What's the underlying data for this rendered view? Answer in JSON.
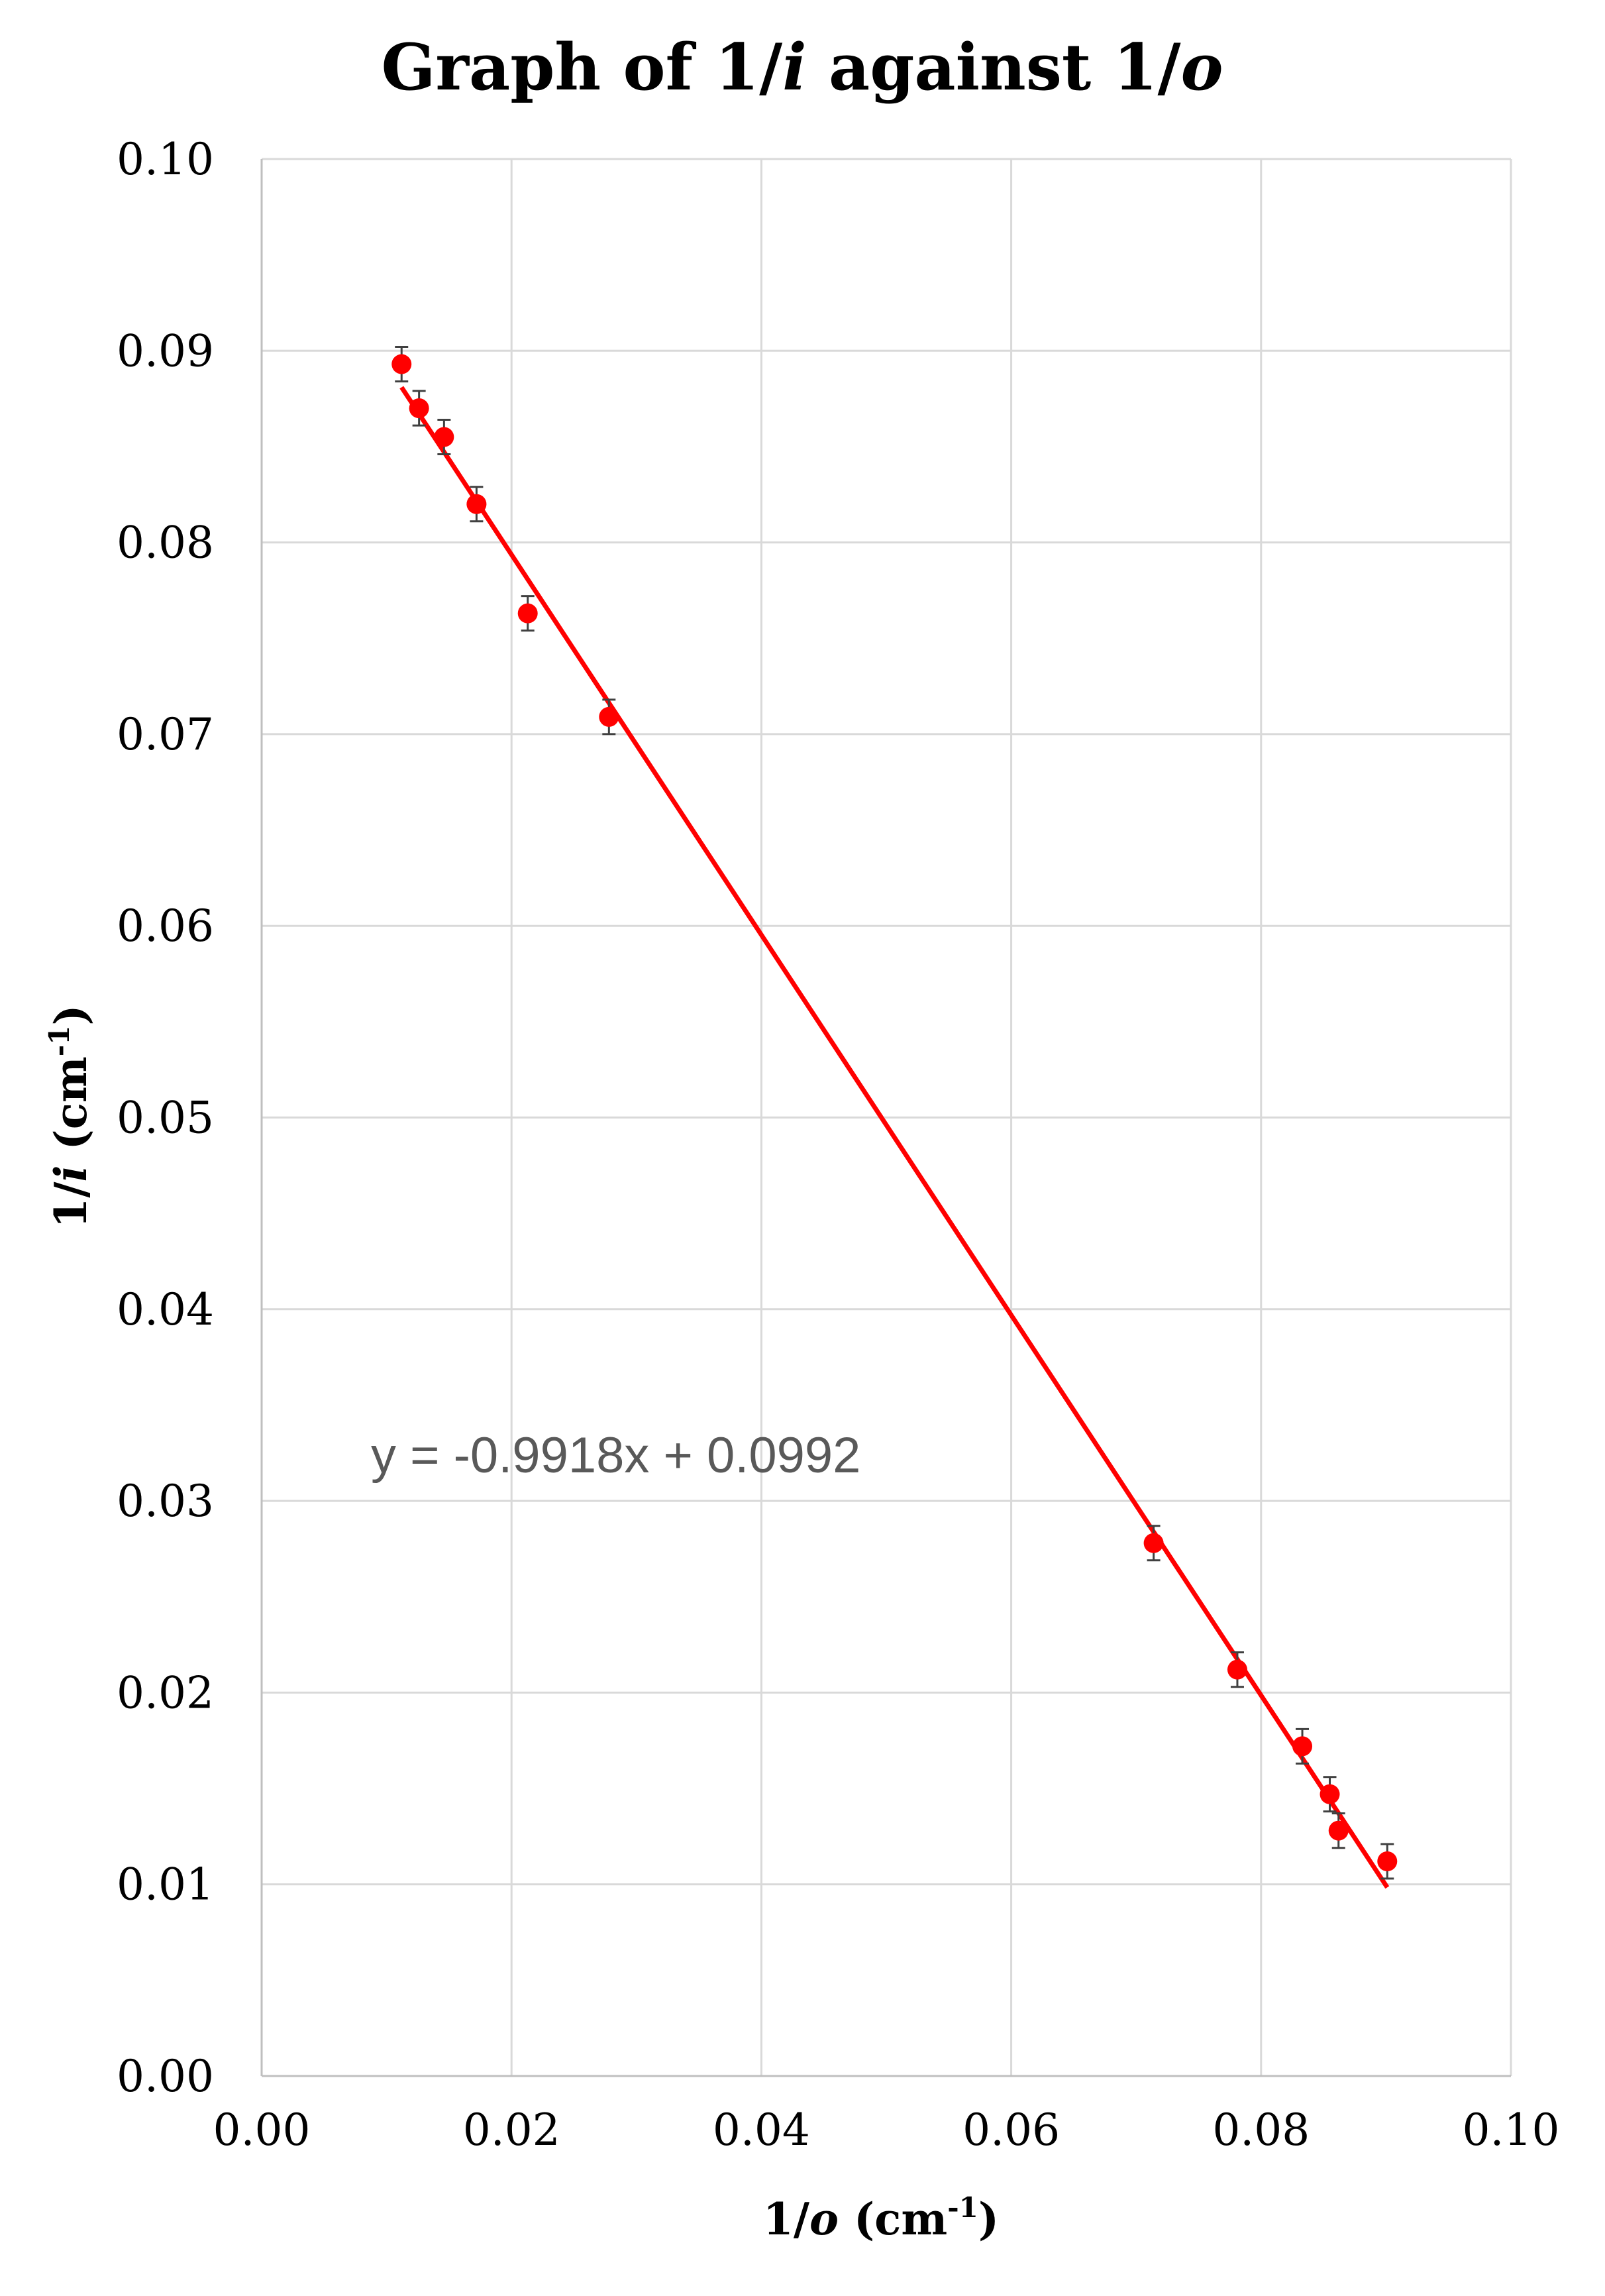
{
  "chart_data": {
    "type": "scatter",
    "title_parts": [
      "Graph of 1/",
      "i",
      " against 1/",
      "o"
    ],
    "xlabel_parts": [
      "1/",
      "o",
      " (cm",
      "-1",
      ")"
    ],
    "ylabel_parts": [
      "1/",
      "i",
      " (cm",
      "-1",
      ")"
    ],
    "xlim": [
      0,
      0.1
    ],
    "ylim": [
      0,
      0.1
    ],
    "x_ticks": [
      "0.00",
      "0.02",
      "0.04",
      "0.06",
      "0.08",
      "0.10"
    ],
    "y_ticks": [
      "0.00",
      "0.01",
      "0.02",
      "0.03",
      "0.04",
      "0.05",
      "0.06",
      "0.07",
      "0.08",
      "0.09",
      "0.10"
    ],
    "grid": true,
    "points": [
      {
        "x": 0.0112,
        "y": 0.0893,
        "err": 0.0009
      },
      {
        "x": 0.0126,
        "y": 0.087,
        "err": 0.0009
      },
      {
        "x": 0.0146,
        "y": 0.0855,
        "err": 0.0009
      },
      {
        "x": 0.0172,
        "y": 0.082,
        "err": 0.0009
      },
      {
        "x": 0.0213,
        "y": 0.0763,
        "err": 0.0009
      },
      {
        "x": 0.0278,
        "y": 0.0709,
        "err": 0.0009
      },
      {
        "x": 0.0714,
        "y": 0.0278,
        "err": 0.0009
      },
      {
        "x": 0.0781,
        "y": 0.0212,
        "err": 0.0009
      },
      {
        "x": 0.0833,
        "y": 0.0172,
        "err": 0.0009
      },
      {
        "x": 0.0855,
        "y": 0.0147,
        "err": 0.0009
      },
      {
        "x": 0.0862,
        "y": 0.0128,
        "err": 0.0009
      },
      {
        "x": 0.0901,
        "y": 0.0112,
        "err": 0.0009
      }
    ],
    "trendline": {
      "slope": -0.9918,
      "intercept": 0.0992,
      "x_range": [
        0.0112,
        0.0901
      ],
      "equation": "y = -0.9918x + 0.0992"
    },
    "colors": {
      "points": "#ff0000",
      "trendline": "#ff0000",
      "error_bars": "#404040",
      "grid": "#d9d9d9",
      "equation": "#595959"
    }
  }
}
